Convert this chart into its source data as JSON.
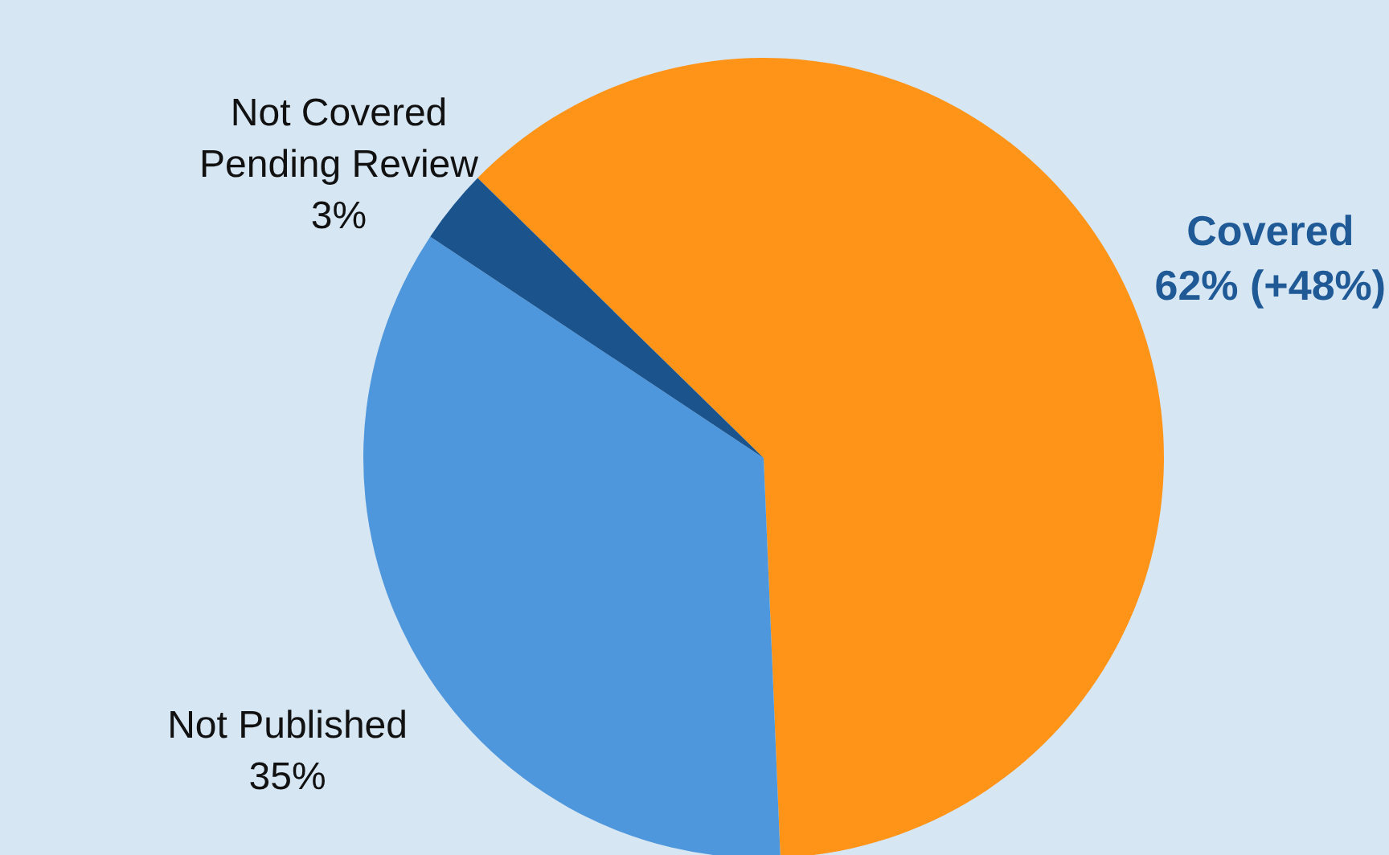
{
  "chart_data": {
    "type": "pie",
    "categories": [
      "Covered",
      "Not Published",
      "Not Covered Pending Review"
    ],
    "values": [
      62,
      35,
      3
    ],
    "colors": [
      "#ff9419",
      "#4f97dc",
      "#1b538c"
    ],
    "value_labels": [
      "62% (+48%)",
      "35%",
      "3%"
    ]
  }
}
